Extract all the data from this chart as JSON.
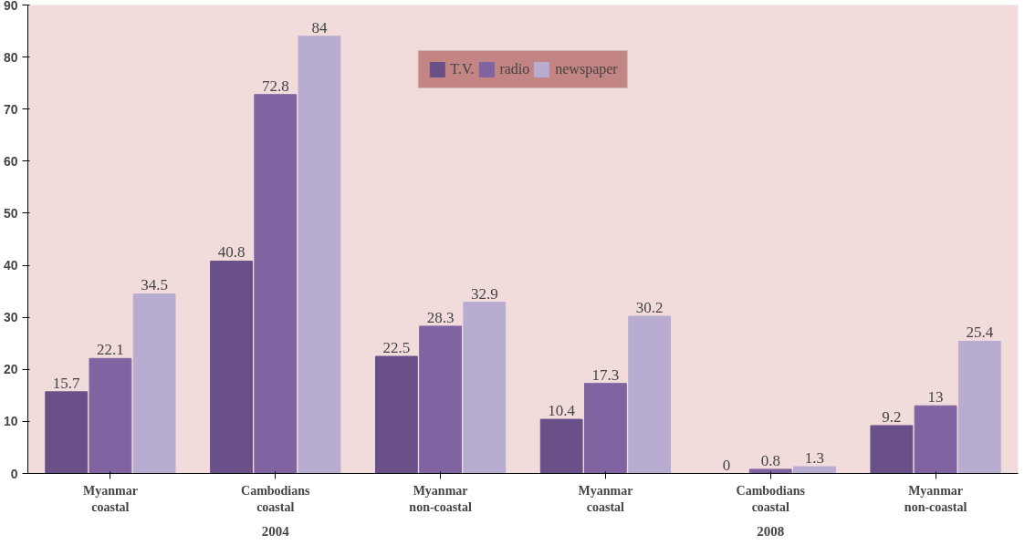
{
  "chart_data": {
    "type": "bar",
    "categories": [
      "Myanmar coastal",
      "Cambodians coastal",
      "Myanmar non-coastal",
      "Myanmar coastal",
      "Cambodians coastal",
      "Myanmar non-coastal"
    ],
    "series": [
      {
        "name": "T.V.",
        "color": "#6a5088",
        "values": [
          15.7,
          40.8,
          22.5,
          10.4,
          0,
          9.2
        ]
      },
      {
        "name": "radio",
        "color": "#8064a2",
        "values": [
          22.1,
          72.8,
          28.3,
          17.3,
          0.8,
          13
        ]
      },
      {
        "name": "newspaper",
        "color": "#b8acd0",
        "values": [
          34.5,
          84,
          32.9,
          30.2,
          1.3,
          25.4
        ]
      }
    ],
    "ylim": [
      0,
      90
    ],
    "yticks": [
      0,
      10,
      20,
      30,
      40,
      50,
      60,
      70,
      80,
      90
    ],
    "grid": false,
    "legend": "top",
    "data_labels": true,
    "annotations": [
      "2004",
      "2008"
    ]
  }
}
